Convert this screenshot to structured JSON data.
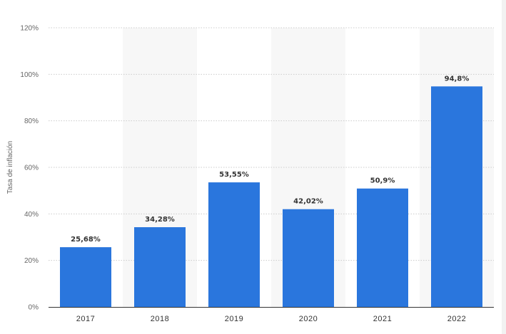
{
  "chart_data": {
    "type": "bar",
    "categories": [
      "2017",
      "2018",
      "2019",
      "2020",
      "2021",
      "2022"
    ],
    "values": [
      25.68,
      34.28,
      53.55,
      42.02,
      50.9,
      94.8
    ],
    "data_labels": [
      "25,68%",
      "34,28%",
      "53,55%",
      "42,02%",
      "50,9%",
      "94,8%"
    ],
    "title": "",
    "xlabel": "",
    "ylabel": "Tasa de inflación",
    "ylim": [
      0,
      120
    ],
    "yticks": [
      0,
      20,
      40,
      60,
      80,
      100,
      120
    ],
    "ytick_labels": [
      "0%",
      "20%",
      "40%",
      "60%",
      "80%",
      "100%",
      "120%"
    ],
    "grid": true,
    "legend": "none",
    "colors": {
      "bar": "#2a76dd",
      "grid": "#cccccc",
      "band": "#f7f7f7",
      "axis": "#333333"
    }
  }
}
